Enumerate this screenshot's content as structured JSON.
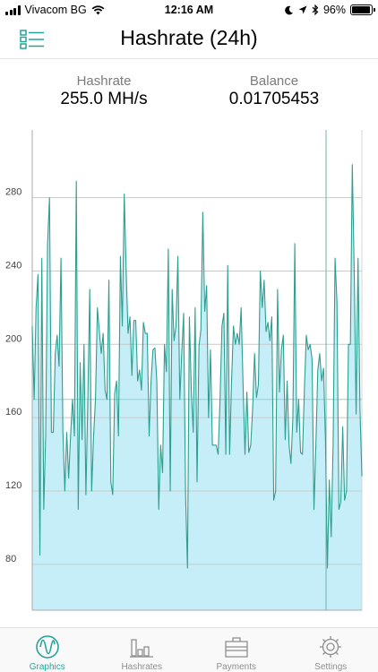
{
  "status_bar": {
    "carrier": "Vivacom BG",
    "time": "12:16 AM",
    "battery": "96%",
    "battery_level": 0.96
  },
  "nav": {
    "title": "Hashrate (24h)",
    "menu_icon": "list-menu-icon"
  },
  "stats": {
    "hashrate_label": "Hashrate",
    "hashrate_value": "255.0 MH/s",
    "balance_label": "Balance",
    "balance_value": "0.01705453"
  },
  "colors": {
    "accent": "#27a39a",
    "line": "#2e9e8e",
    "fill": "#c6eef9",
    "grid": "#c9c9c9",
    "inactive": "#8e8e8e"
  },
  "chart_data": {
    "type": "area",
    "yticks": [
      80,
      120,
      160,
      200,
      240,
      280
    ],
    "ylim": [
      55,
      315
    ],
    "average": 170,
    "grid": true,
    "values": [
      210,
      170,
      220,
      238,
      85,
      247,
      110,
      150,
      255,
      280,
      152,
      152,
      195,
      205,
      188,
      247,
      152,
      120,
      152,
      127,
      150,
      170,
      150,
      289,
      110,
      190,
      148,
      200,
      118,
      170,
      230,
      120,
      150,
      170,
      220,
      207,
      195,
      206,
      175,
      170,
      235,
      125,
      118,
      173,
      180,
      150,
      248,
      210,
      282,
      240,
      206,
      215,
      183,
      213,
      213,
      180,
      186,
      175,
      212,
      206,
      206,
      150,
      180,
      197,
      198,
      180,
      110,
      145,
      130,
      200,
      185,
      252,
      120,
      230,
      202,
      210,
      248,
      170,
      195,
      217,
      118,
      78,
      215,
      175,
      152,
      220,
      125,
      199,
      208,
      272,
      218,
      232,
      160,
      197,
      145,
      145,
      145,
      140,
      170,
      210,
      217,
      140,
      243,
      140,
      180,
      210,
      200,
      206,
      200,
      220,
      178,
      140,
      174,
      141,
      145,
      165,
      195,
      171,
      178,
      240,
      220,
      235,
      207,
      212,
      202,
      215,
      115,
      120,
      230,
      174,
      197,
      205,
      148,
      180,
      145,
      135,
      160,
      255,
      152,
      170,
      141,
      140,
      175,
      205,
      197,
      200,
      192,
      110,
      145,
      186,
      195,
      180,
      187,
      148,
      78,
      126,
      95,
      146,
      247,
      223,
      110,
      114,
      155,
      115,
      120,
      200,
      200,
      298,
      240,
      162,
      247,
      165,
      128
    ]
  },
  "tabs": [
    {
      "label": "Graphics",
      "icon": "waveform-circle-icon",
      "active": true
    },
    {
      "label": "Hashrates",
      "icon": "bar-chart-icon",
      "active": false
    },
    {
      "label": "Payments",
      "icon": "briefcase-icon",
      "active": false
    },
    {
      "label": "Settings",
      "icon": "gear-icon",
      "active": false
    }
  ]
}
